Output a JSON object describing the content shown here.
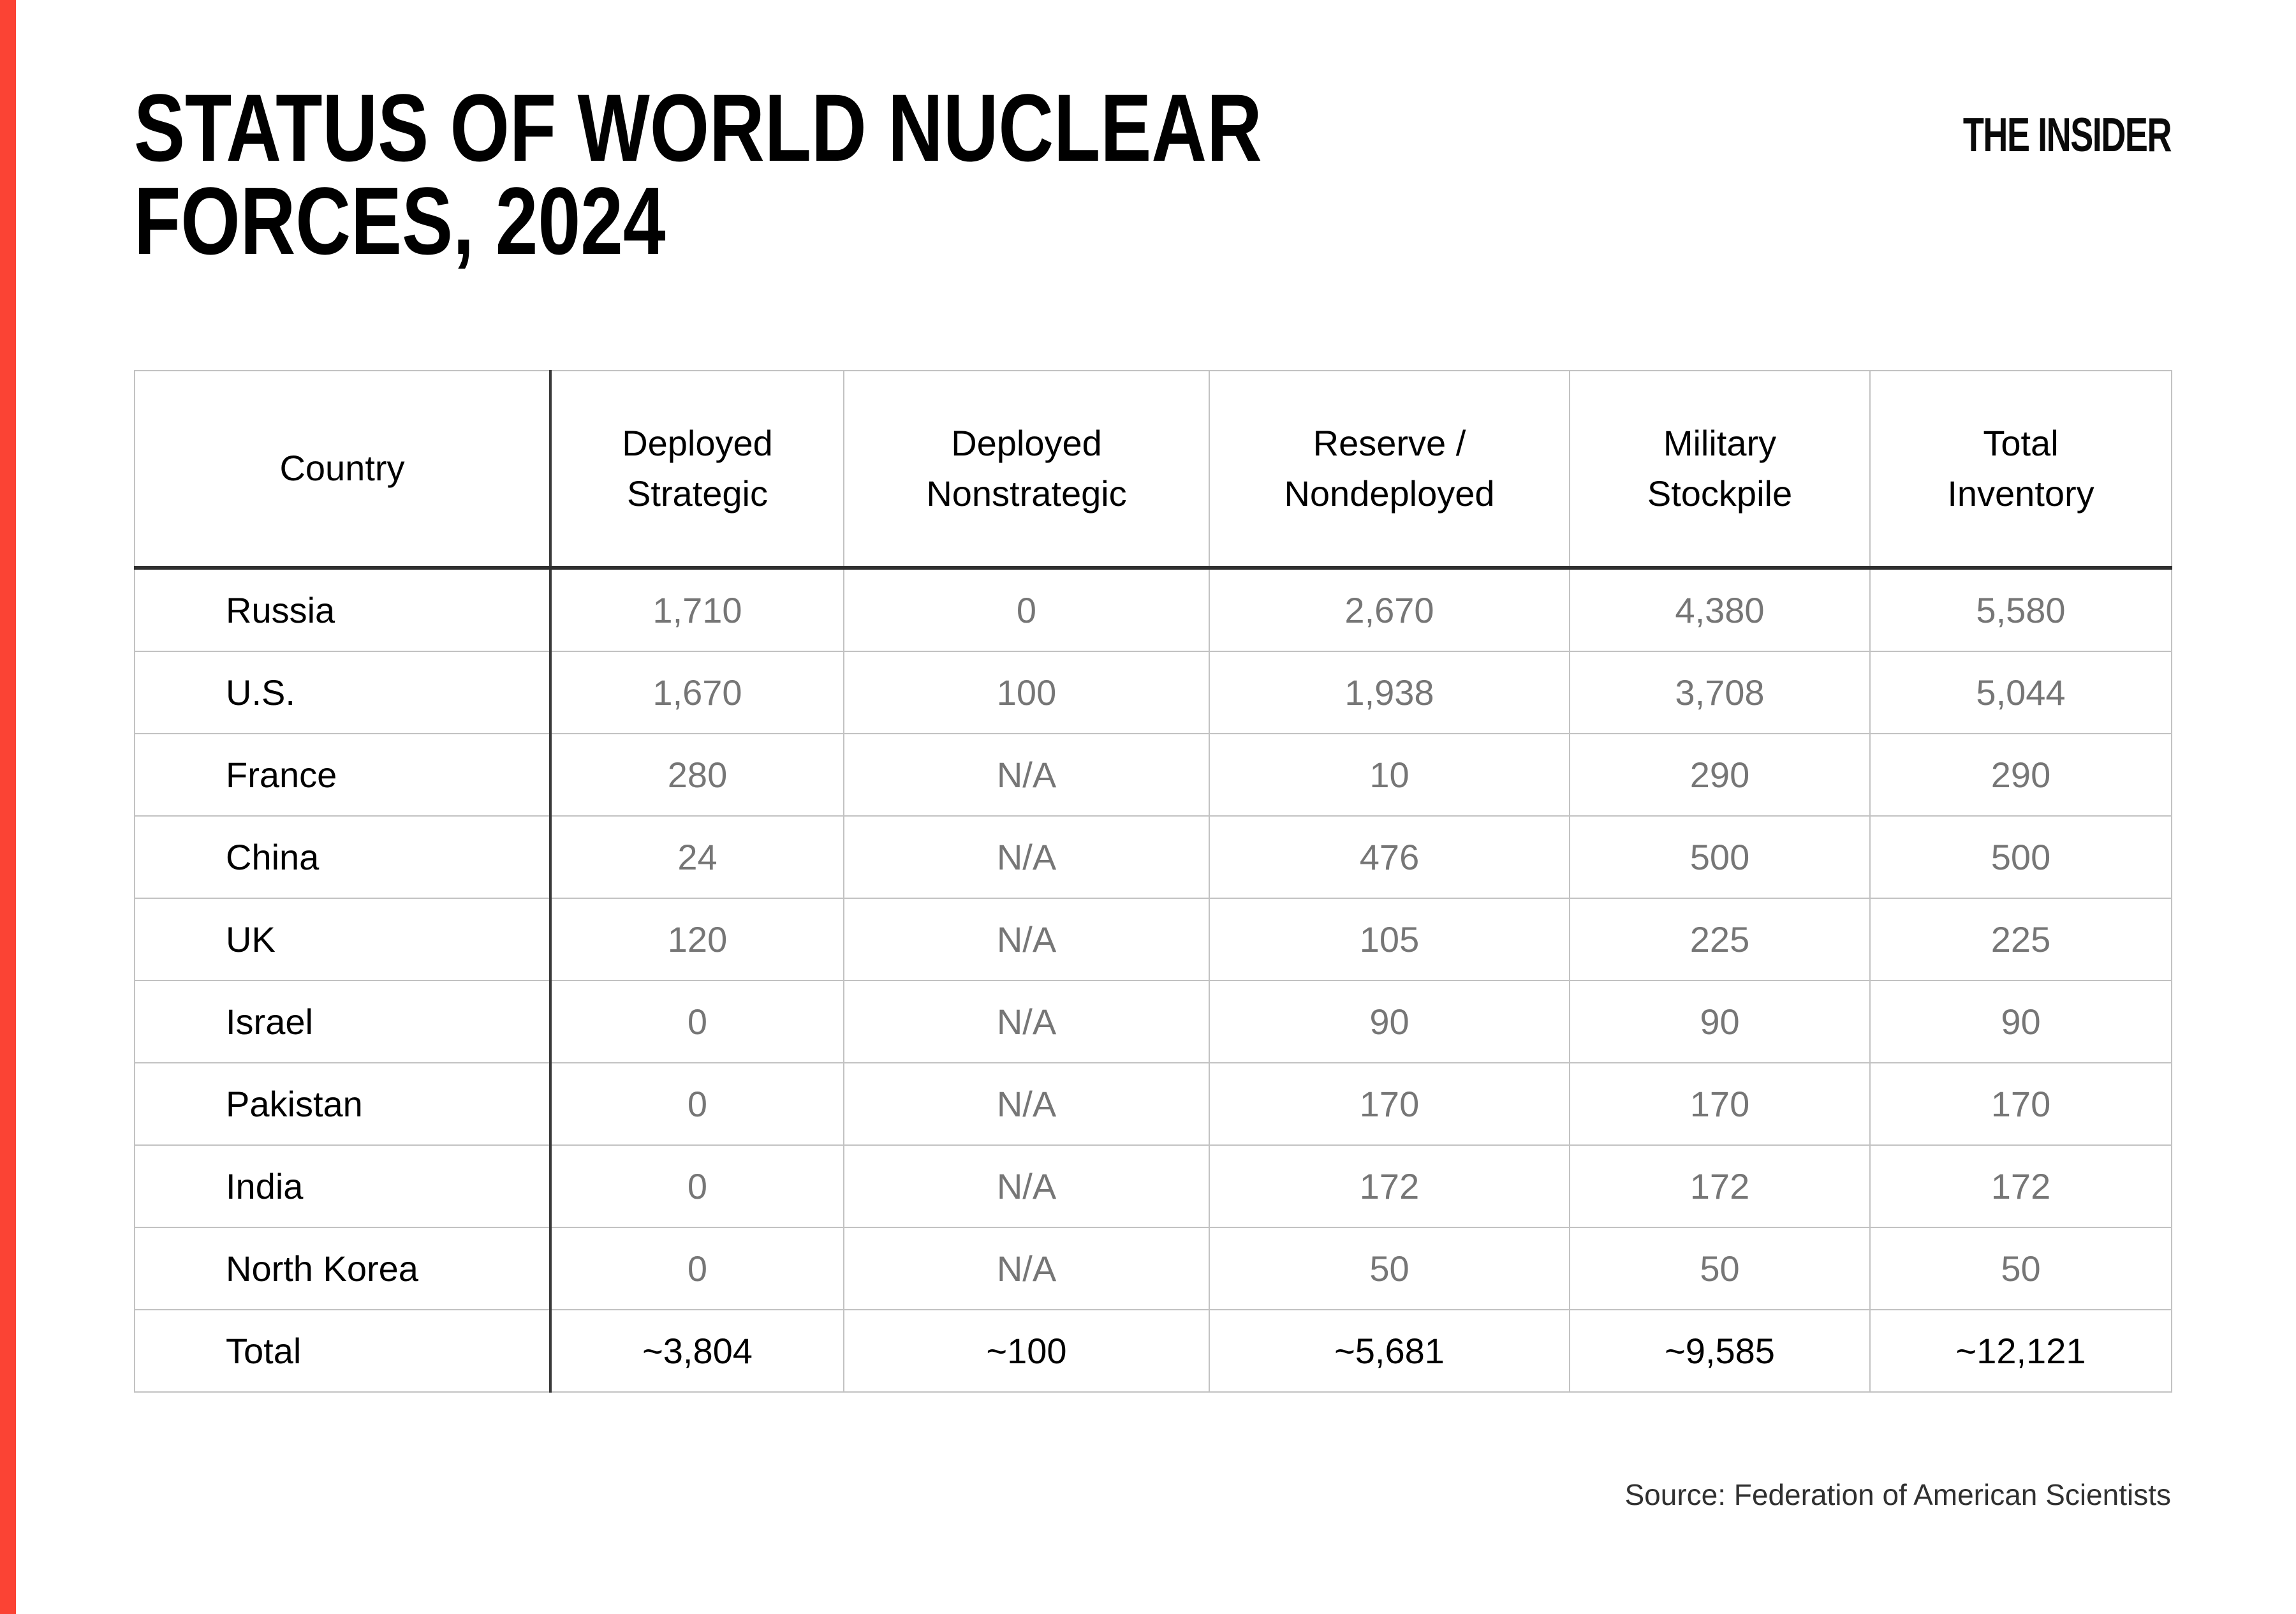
{
  "page": {
    "title_line1": "STATUS OF WORLD NUCLEAR",
    "title_line2": "FORCES, 2024",
    "logo": "THE INSIDER",
    "source": "Source: Federation of American Scientists",
    "accent_color": "#fb4334",
    "value_text_color": "#767676"
  },
  "chart_data": {
    "type": "table",
    "title": "STATUS OF WORLD NUCLEAR FORCES, 2024",
    "columns": [
      "Country",
      "Deployed Strategic",
      "Deployed Nonstrategic",
      "Reserve / Nondeployed",
      "Military Stockpile",
      "Total Inventory"
    ],
    "header_display": [
      "Country",
      "Deployed\nStrategic",
      "Deployed\nNonstrategic",
      "Reserve /\nNondeployed",
      "Military\nStockpile",
      "Total\nInventory"
    ],
    "rows": [
      [
        "Russia",
        "1,710",
        "0",
        "2,670",
        "4,380",
        "5,580"
      ],
      [
        "U.S.",
        "1,670",
        "100",
        "1,938",
        "3,708",
        "5,044"
      ],
      [
        "France",
        "280",
        "N/A",
        "10",
        "290",
        "290"
      ],
      [
        "China",
        "24",
        "N/A",
        "476",
        "500",
        "500"
      ],
      [
        "UK",
        "120",
        "N/A",
        "105",
        "225",
        "225"
      ],
      [
        "Israel",
        "0",
        "N/A",
        "90",
        "90",
        "90"
      ],
      [
        "Pakistan",
        "0",
        "N/A",
        "170",
        "170",
        "170"
      ],
      [
        "India",
        "0",
        "N/A",
        "172",
        "172",
        "172"
      ],
      [
        "North Korea",
        "0",
        "N/A",
        "50",
        "50",
        "50"
      ],
      [
        "Total",
        "~3,804",
        "~100",
        "~5,681",
        "~9,585",
        "~12,121"
      ]
    ],
    "source": "Federation of American Scientists",
    "legend_position": "none",
    "grid": true
  }
}
